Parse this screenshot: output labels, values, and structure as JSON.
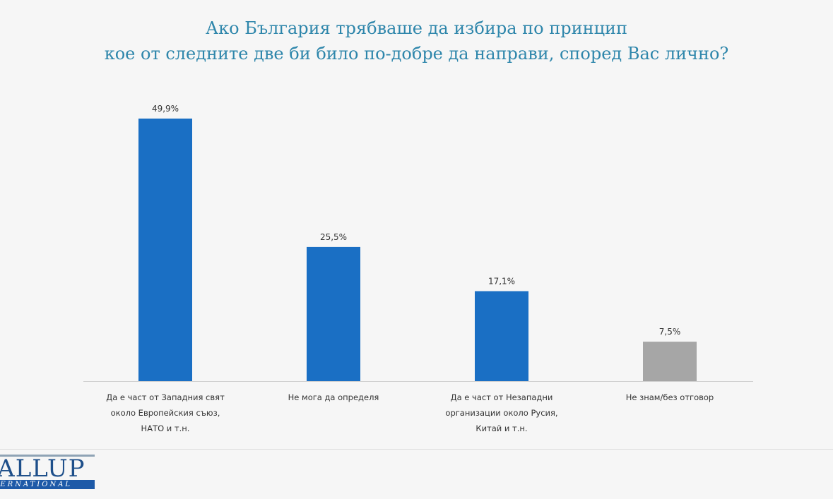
{
  "title_lines": [
    "Ако България трябваше да избира по принцип",
    "кое от следните две би било по-добре да направи, според Вас лично?"
  ],
  "chart_data": {
    "type": "bar",
    "title": "Ако България трябваше да избира по принцип кое от следните две би било по-добре да направи, според Вас лично?",
    "categories": [
      [
        "Да е част от Западния свят",
        "около Европейския съюз,",
        "НАТО и т.н."
      ],
      [
        "Не мога да определя"
      ],
      [
        "Да е част от Незападни",
        "организации около Русия,",
        "Китай и т.н."
      ],
      [
        "Не знам/без отговор"
      ]
    ],
    "values": [
      49.9,
      25.5,
      17.1,
      7.5
    ],
    "value_labels": [
      "49,9%",
      "25,5%",
      "17,1%",
      "7,5%"
    ],
    "colors": [
      "#1a6fc4",
      "#1a6fc4",
      "#1a6fc4",
      "#a6a6a6"
    ],
    "ylim": [
      0,
      50
    ],
    "grid": false,
    "legend": "none"
  },
  "logo": {
    "main": "GALLUP",
    "sub": "INTERNATIONAL"
  }
}
